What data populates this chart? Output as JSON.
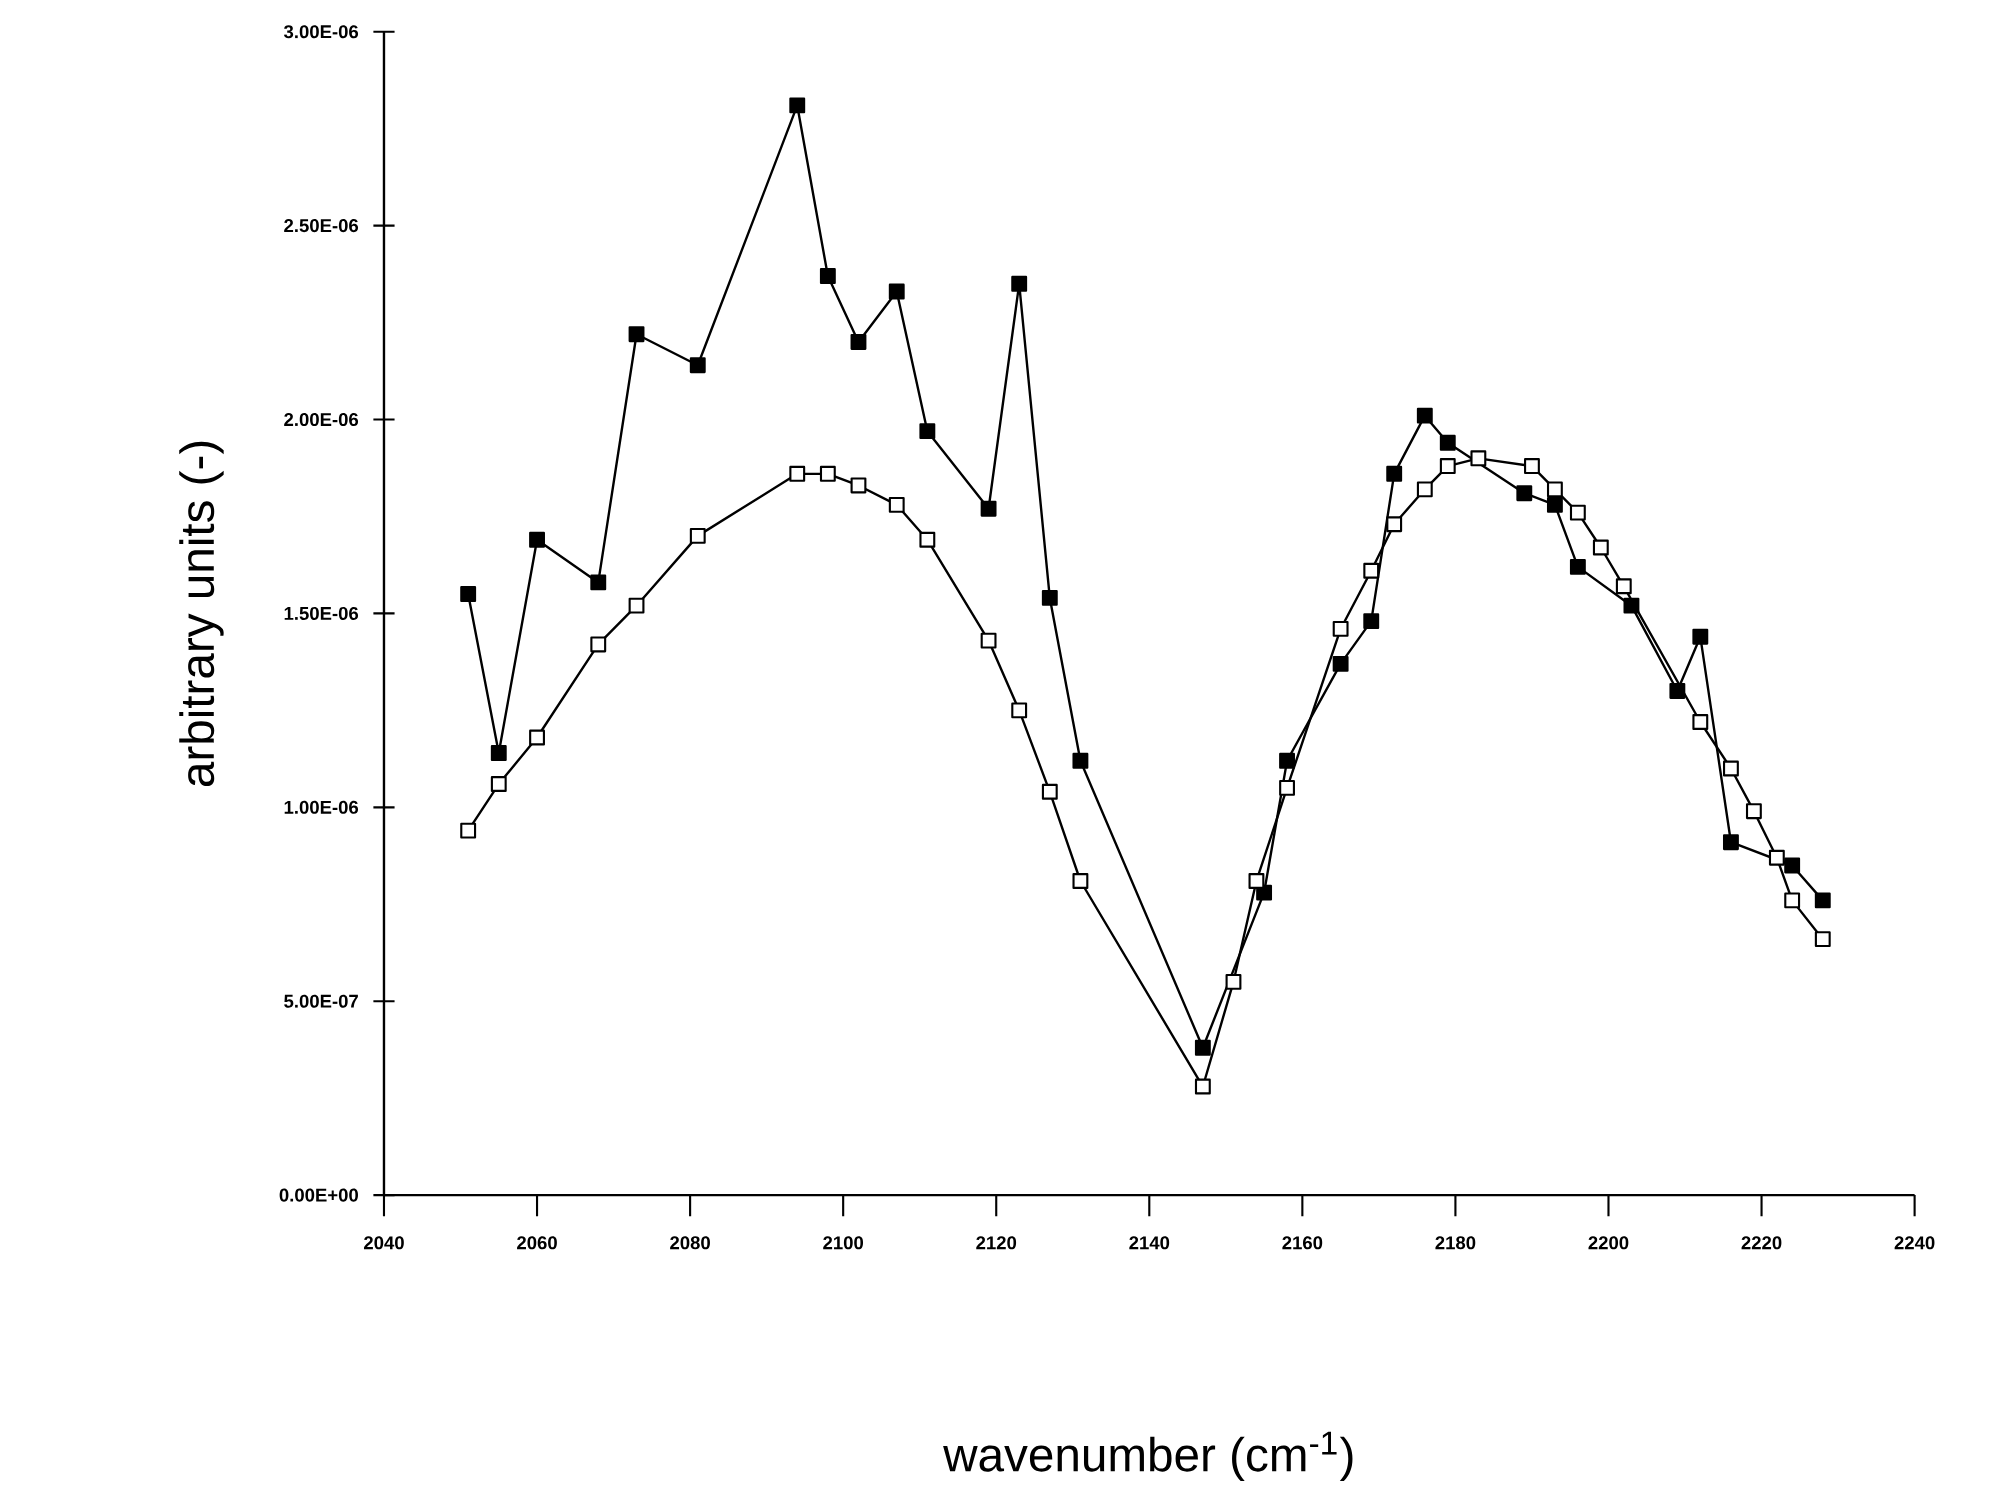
{
  "chart_data": {
    "type": "line",
    "xlabel": "wavenumber (cm$^{-1}$)",
    "ylabel": "arbitrary units (-)",
    "xlim": [
      2040,
      2240
    ],
    "xticks": [
      2040,
      2060,
      2080,
      2100,
      2120,
      2140,
      2160,
      2180,
      2200,
      2220,
      2240
    ],
    "ylim": [
      0,
      3e-06
    ],
    "yticks": [
      {
        "value": 0,
        "label": "0.00E+00"
      },
      {
        "value": 5e-07,
        "label": "5.00E-07"
      },
      {
        "value": 1e-06,
        "label": "1.00E-06"
      },
      {
        "value": 1.5e-06,
        "label": "1.50E-06"
      },
      {
        "value": 2e-06,
        "label": "2.00E-06"
      },
      {
        "value": 2.5e-06,
        "label": "2.50E-06"
      },
      {
        "value": 3e-06,
        "label": "3.00E-06"
      }
    ],
    "grid": false,
    "marker": "square",
    "line_style": "solid",
    "series": [
      {
        "color": "#000000",
        "x": [
          2051,
          2055,
          2060,
          2068,
          2073,
          2081,
          2094,
          2098,
          2102,
          2107,
          2111,
          2119,
          2123,
          2127,
          2131,
          2147,
          2155,
          2158,
          2165,
          2169,
          2172,
          2176,
          2179,
          2189,
          2193,
          2196,
          2203,
          2209,
          2212,
          2216,
          2224,
          2228
        ],
        "values": [
          1.55e-06,
          1.14e-06,
          1.69e-06,
          1.58e-06,
          2.22e-06,
          2.14e-06,
          2.81e-06,
          2.37e-06,
          2.2e-06,
          2.33e-06,
          1.97e-06,
          1.77e-06,
          2.35e-06,
          1.54e-06,
          1.12e-06,
          3.8e-07,
          7.8e-07,
          1.12e-06,
          1.37e-06,
          1.48e-06,
          1.86e-06,
          2.01e-06,
          1.94e-06,
          1.81e-06,
          1.78e-06,
          1.62e-06,
          1.52e-06,
          1.3e-06,
          1.44e-06,
          9.1e-07,
          8.5e-07,
          7.6e-07
        ]
      },
      {
        "color": "#000000",
        "x": [
          2051,
          2055,
          2060,
          2068,
          2073,
          2081,
          2094,
          2098,
          2102,
          2107,
          2111,
          2119,
          2123,
          2127,
          2131,
          2147,
          2151,
          2154,
          2158,
          2165,
          2169,
          2172,
          2176,
          2179,
          2183,
          2190,
          2193,
          2196,
          2199,
          2202,
          2212,
          2216,
          2219,
          2222,
          2224,
          2228
        ],
        "values": [
          9.4e-07,
          1.06e-06,
          1.18e-06,
          1.42e-06,
          1.52e-06,
          1.7e-06,
          1.86e-06,
          1.86e-06,
          1.83e-06,
          1.78e-06,
          1.69e-06,
          1.43e-06,
          1.25e-06,
          1.04e-06,
          8.1e-07,
          2.8e-07,
          5.5e-07,
          8.1e-07,
          1.05e-06,
          1.46e-06,
          1.61e-06,
          1.73e-06,
          1.82e-06,
          1.88e-06,
          1.9e-06,
          1.88e-06,
          1.82e-06,
          1.76e-06,
          1.67e-06,
          1.57e-06,
          1.22e-06,
          1.1e-06,
          9.9e-07,
          8.7e-07,
          7.6e-07,
          6.6e-07
        ]
      }
    ]
  }
}
